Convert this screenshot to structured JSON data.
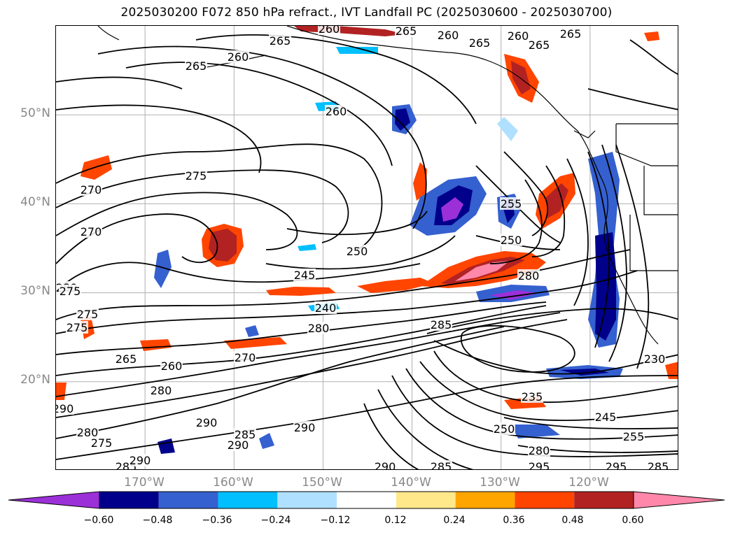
{
  "title": "2025030200 F072 850 hPa refract., IVT Landfall PC (2025030600 - 2025030700)",
  "map": {
    "lat_labels": [
      "50°N",
      "40°N",
      "30°N",
      "20°N"
    ],
    "lon_labels": [
      "170°W",
      "160°W",
      "150°W",
      "140°W",
      "130°W",
      "120°W"
    ],
    "lat_values": [
      50,
      40,
      30,
      20
    ],
    "lon_values": [
      -170,
      -160,
      -150,
      -140,
      -130,
      -120
    ],
    "lon_range": [
      -180,
      -110
    ],
    "lat_range": [
      10,
      60
    ],
    "contour_labels": [
      "265",
      "260",
      "265",
      "260",
      "265",
      "260",
      "265",
      "260",
      "265",
      "265",
      "260",
      "275",
      "270",
      "270",
      "255",
      "250",
      "250",
      "245",
      "240",
      "280",
      "275",
      "280",
      "285",
      "280",
      "275",
      "265",
      "260",
      "270",
      "280",
      "275",
      "230",
      "235",
      "245",
      "255",
      "250",
      "280",
      "290",
      "290",
      "285",
      "290",
      "295",
      "295",
      "285",
      "290",
      "280",
      "275",
      "285",
      "290",
      "285",
      "290"
    ],
    "colors": {
      "contour": "#000000",
      "coast": "#000000",
      "grid": "#b0b0b0"
    }
  },
  "colorbar": {
    "colors": [
      "#9b30d9",
      "#00008b",
      "#3560d0",
      "#00bfff",
      "#b0e0ff",
      "#ffffff",
      "#ffe88a",
      "#ffa500",
      "#ff4500",
      "#b22222",
      "#ff88aa"
    ],
    "tick_labels": [
      "−0.60",
      "−0.48",
      "−0.36",
      "−0.24",
      "−0.12",
      "0.12",
      "0.24",
      "0.36",
      "0.48",
      "0.60"
    ]
  }
}
